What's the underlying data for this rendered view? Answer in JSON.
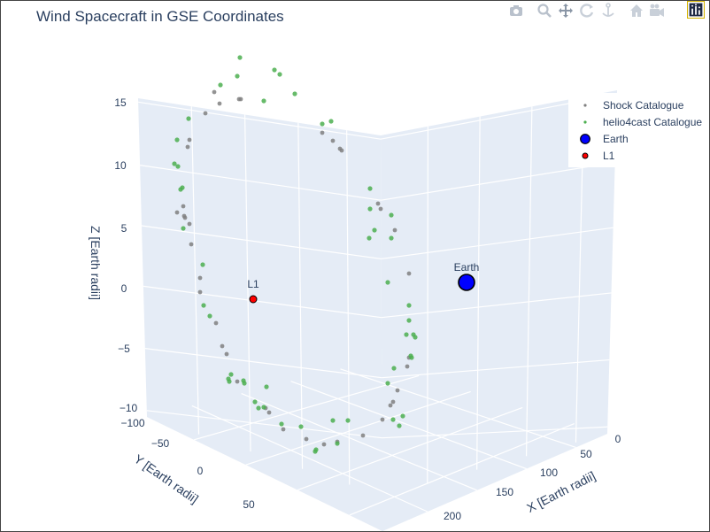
{
  "chart_data": {
    "type": "scatter3d",
    "title": "Wind Spacecraft in GSE Coordinates",
    "xaxis": {
      "title": "X [Earth radii]",
      "ticks": [
        "0",
        "50",
        "100",
        "150",
        "200"
      ]
    },
    "yaxis": {
      "title": "Y [Earth radii]",
      "ticks": [
        "−100",
        "−50",
        "0",
        "50"
      ]
    },
    "zaxis": {
      "title": "Z [Earth radii]",
      "ticks": [
        "−10",
        "−5",
        "0",
        "5",
        "10",
        "15"
      ]
    },
    "legend_position": "top-right",
    "series": [
      {
        "name": "Shock Catalogue",
        "color": "#808080",
        "points": [
          [
            242,
            104
          ],
          [
            248,
            117
          ],
          [
            270,
            112
          ],
          [
            272,
            112
          ],
          [
            232,
            128
          ],
          [
            214,
            158
          ],
          [
            212,
            166
          ],
          [
            364,
            150
          ],
          [
            376,
            159
          ],
          [
            384,
            168
          ],
          [
            386,
            170
          ],
          [
            207,
            233
          ],
          [
            208,
            244
          ],
          [
            200,
            240
          ],
          [
            209,
            246
          ],
          [
            214,
            253
          ],
          [
            427,
            230
          ],
          [
            430,
            236
          ],
          [
            446,
            260
          ],
          [
            216,
            276
          ],
          [
            226,
            314
          ],
          [
            226,
            330
          ],
          [
            244,
            365
          ],
          [
            462,
            309
          ],
          [
            462,
            404
          ],
          [
            460,
            414
          ],
          [
            449,
            441
          ],
          [
            251,
            391
          ],
          [
            256,
            400
          ],
          [
            268,
            431
          ],
          [
            444,
            454
          ],
          [
            441,
            458
          ],
          [
            432,
            474
          ],
          [
            300,
            461
          ],
          [
            304,
            466
          ],
          [
            320,
            485
          ],
          [
            346,
            496
          ],
          [
            366,
            502
          ],
          [
            381,
            499
          ],
          [
            410,
            492
          ]
        ]
      },
      {
        "name": "helio4cast Catalogue",
        "color": "#4caf50",
        "points": [
          [
            271,
            65
          ],
          [
            310,
            79
          ],
          [
            316,
            84
          ],
          [
            268,
            86
          ],
          [
            333,
            106
          ],
          [
            298,
            114
          ],
          [
            249,
            96
          ],
          [
            364,
            140
          ],
          [
            374,
            137
          ],
          [
            213,
            134
          ],
          [
            200,
            158
          ],
          [
            197,
            185
          ],
          [
            201,
            188
          ],
          [
            206,
            212
          ],
          [
            204,
            214
          ],
          [
            207,
            258
          ],
          [
            418,
            213
          ],
          [
            418,
            236
          ],
          [
            442,
            243
          ],
          [
            423,
            260
          ],
          [
            417,
            269
          ],
          [
            442,
            269
          ],
          [
            229,
            299
          ],
          [
            230,
            345
          ],
          [
            237,
            357
          ],
          [
            438,
            319
          ],
          [
            462,
            345
          ],
          [
            462,
            362
          ],
          [
            459,
            378
          ],
          [
            467,
            378
          ],
          [
            469,
            381
          ],
          [
            465,
            404
          ],
          [
            445,
            416
          ],
          [
            464,
            402
          ],
          [
            261,
            423
          ],
          [
            258,
            428
          ],
          [
            259,
            431
          ],
          [
            275,
            430
          ],
          [
            276,
            433
          ],
          [
            438,
            433
          ],
          [
            301,
            437
          ],
          [
            288,
            454
          ],
          [
            292,
            461
          ],
          [
            298,
            460
          ],
          [
            444,
            474
          ],
          [
            455,
            470
          ],
          [
            451,
            481
          ],
          [
            318,
            479
          ],
          [
            340,
            482
          ],
          [
            376,
            475
          ],
          [
            393,
            475
          ],
          [
            357,
            508
          ],
          [
            356,
            510
          ],
          [
            381,
            501
          ]
        ]
      },
      {
        "name": "Earth",
        "color": "#0000ff",
        "label": "Earth",
        "points": [
          [
            527,
            319
          ]
        ]
      },
      {
        "name": "L1",
        "color": "#ff0000",
        "label": "L1",
        "points": [
          [
            286,
            338
          ]
        ]
      }
    ]
  },
  "modebar": {
    "icons": [
      "camera-icon",
      "zoom-icon",
      "pan-icon",
      "orbit-icon",
      "turntable-icon",
      "home-icon",
      "camera-view-icon",
      "plotly-logo-icon"
    ]
  }
}
